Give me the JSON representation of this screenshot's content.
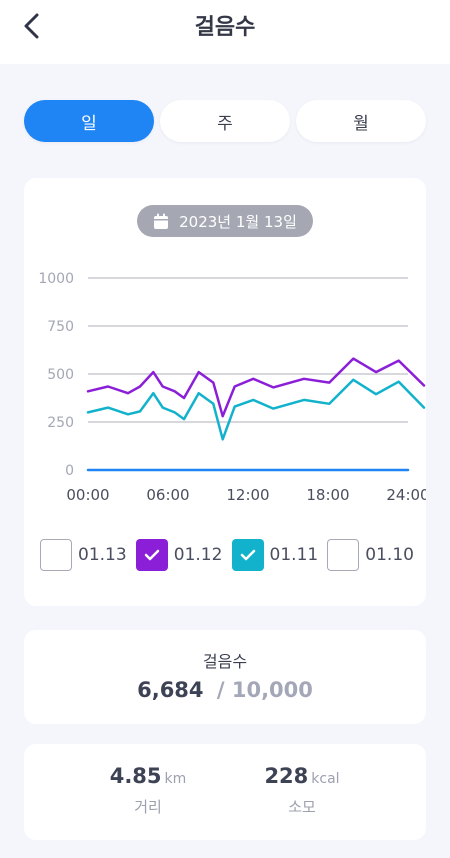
{
  "header": {
    "title": "걸음수",
    "back_icon": "chevron-left-icon"
  },
  "tabs": [
    {
      "label": "일",
      "active": true
    },
    {
      "label": "주",
      "active": false
    },
    {
      "label": "월",
      "active": false
    }
  ],
  "date": {
    "label": "2023년 1월 13일",
    "icon": "calendar-icon"
  },
  "chart_data": {
    "type": "line",
    "x_ticks": [
      "00:00",
      "06:00",
      "12:00",
      "18:00",
      "24:00"
    ],
    "y_ticks": [
      "1000",
      "750",
      "500",
      "250",
      "0"
    ],
    "ylim": [
      0,
      1000
    ],
    "xlim": [
      0,
      24
    ],
    "grid": true,
    "series": [
      {
        "name": "01.13",
        "color": "#1f85f5",
        "checked": false,
        "visible": true,
        "x": [
          0,
          24
        ],
        "y": [
          0,
          0
        ]
      },
      {
        "name": "01.12",
        "color": "#8b1fd8",
        "checked": true,
        "visible": true,
        "x": [
          0,
          1.5,
          3,
          3.9,
          4.9,
          5.6,
          6.5,
          7.2,
          8.3,
          9.4,
          10.1,
          11.0,
          12.4,
          13.9,
          16.2,
          18.1,
          19.9,
          21.6,
          23.3,
          25.2
        ],
        "y": [
          410,
          435,
          400,
          435,
          510,
          435,
          410,
          375,
          510,
          455,
          280,
          435,
          475,
          430,
          475,
          455,
          580,
          510,
          570,
          440
        ]
      },
      {
        "name": "01.11",
        "color": "#12b2cc",
        "checked": true,
        "visible": true,
        "x": [
          0,
          1.5,
          3,
          3.9,
          4.9,
          5.6,
          6.5,
          7.2,
          8.3,
          9.4,
          10.1,
          11.0,
          12.4,
          13.9,
          16.2,
          18.1,
          19.9,
          21.6,
          23.3,
          25.2
        ],
        "y": [
          300,
          325,
          290,
          305,
          400,
          325,
          300,
          265,
          400,
          345,
          160,
          330,
          365,
          320,
          365,
          345,
          470,
          395,
          460,
          325
        ]
      },
      {
        "name": "01.10",
        "color": "#a7aab5",
        "checked": false,
        "visible": false,
        "x": [],
        "y": []
      }
    ]
  },
  "steps": {
    "title": "걸음수",
    "current": "6,684",
    "goal": "/ 10,000"
  },
  "stats": [
    {
      "value": "4.85",
      "unit": "km",
      "label": "거리"
    },
    {
      "value": "228",
      "unit": "kcal",
      "label": "소모"
    }
  ]
}
